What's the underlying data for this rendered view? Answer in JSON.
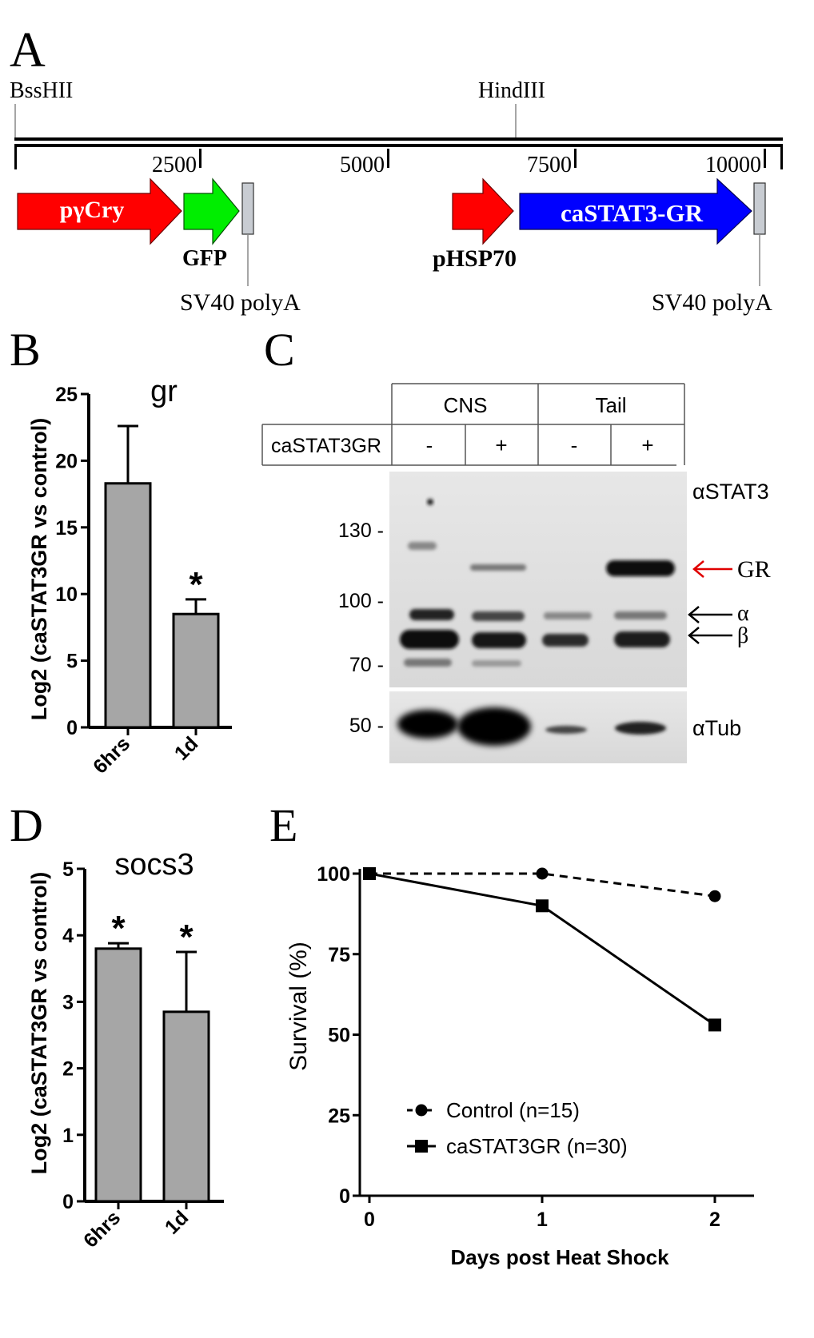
{
  "panelA": {
    "letter": "A",
    "sites": {
      "left": "BssHII",
      "right": "HindIII"
    },
    "scale_ticks": [
      "2500",
      "5000",
      "7500",
      "10000"
    ],
    "elements": {
      "promoter1": "pγCry",
      "gfp": "GFP",
      "polyA1": "SV40 polyA",
      "promoter2": "pHSP70",
      "transgene": "caSTAT3-GR",
      "polyA2": "SV40 polyA"
    },
    "colors": {
      "promoter": "#ff0000",
      "gfp": "#00ee00",
      "transgene": "#0000ff",
      "polyA": "#c8ccd2"
    }
  },
  "panelB": {
    "letter": "B",
    "chart_data": {
      "type": "bar",
      "title": "gr",
      "ylabel": "Log2 (caSTAT3GR vs control)",
      "categories": [
        "6hrs",
        "1d"
      ],
      "values": [
        18.3,
        8.5
      ],
      "error_upper": [
        4.3,
        1.1
      ],
      "significance": [
        "",
        "*"
      ],
      "ylim": [
        0,
        25
      ],
      "yticks": [
        "0",
        "5",
        "10",
        "15",
        "20",
        "25"
      ],
      "bar_color": "#a6a6a6"
    }
  },
  "panelC": {
    "letter": "C",
    "groups": [
      "CNS",
      "Tail"
    ],
    "row_label": "caSTAT3GR",
    "lanes": [
      "-",
      "+",
      "-",
      "+"
    ],
    "markers": [
      "130 -",
      "100 -",
      "70 -",
      "50 -"
    ],
    "antibody_top": "αSTAT3",
    "antibody_bottom": "αTub",
    "band_labels": {
      "gr": "GR",
      "alpha": "α",
      "beta": "β"
    },
    "arrow_colors": {
      "gr": "#e00000",
      "isoform": "#000000"
    }
  },
  "panelD": {
    "letter": "D",
    "chart_data": {
      "type": "bar",
      "title": "socs3",
      "ylabel": "Log2 (caSTAT3GR vs control)",
      "categories": [
        "6hrs",
        "1d"
      ],
      "values": [
        3.8,
        2.85
      ],
      "error_upper": [
        0.08,
        0.9
      ],
      "significance": [
        "*",
        "*"
      ],
      "ylim": [
        0,
        5
      ],
      "yticks": [
        "0",
        "1",
        "2",
        "3",
        "4",
        "5"
      ],
      "bar_color": "#a6a6a6"
    }
  },
  "panelE": {
    "letter": "E",
    "chart_data": {
      "type": "line",
      "xlabel": "Days post Heat Shock",
      "ylabel": "Survival (%)",
      "x": [
        0,
        1,
        2
      ],
      "xticks": [
        "0",
        "1",
        "2"
      ],
      "yticks": [
        "0",
        "25",
        "50",
        "75",
        "100"
      ],
      "ylim": [
        0,
        100
      ],
      "series": [
        {
          "name": "Control (n=15)",
          "values": [
            100,
            100,
            93
          ],
          "marker": "circle",
          "dash": true
        },
        {
          "name": "caSTAT3GR (n=30)",
          "values": [
            100,
            90,
            53
          ],
          "marker": "square",
          "dash": false
        }
      ],
      "legend": "bottom-left"
    }
  }
}
